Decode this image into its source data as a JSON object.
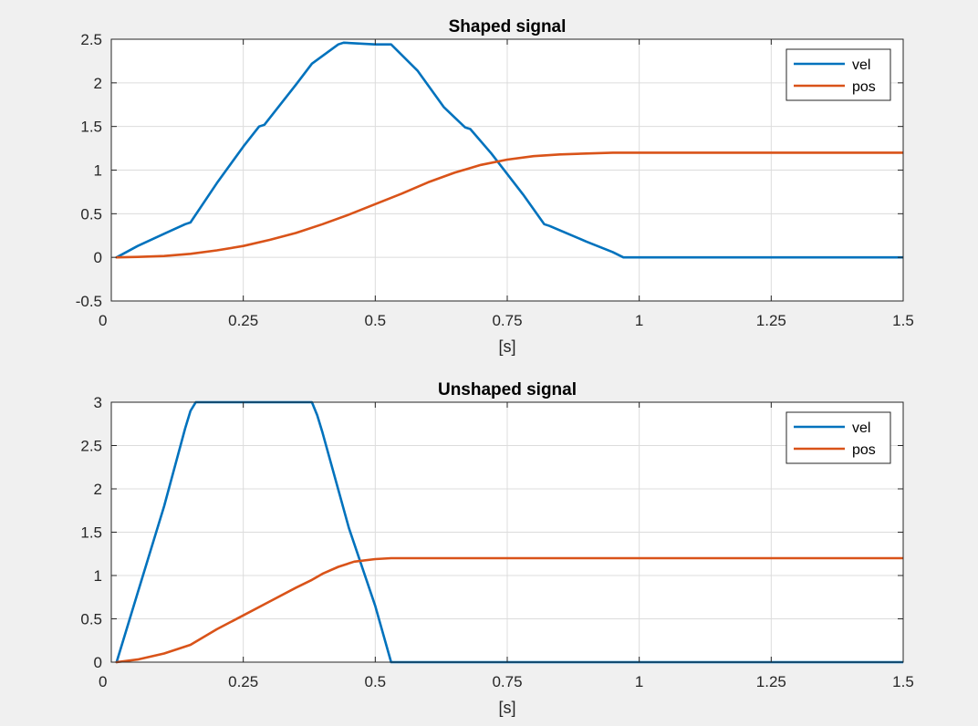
{
  "chart_data": [
    {
      "type": "line",
      "title": "Shaped signal",
      "xlabel": "[s]",
      "ylabel": "",
      "xlim": [
        0,
        1.5
      ],
      "ylim": [
        -0.5,
        2.5
      ],
      "xticks": [
        0,
        0.25,
        0.5,
        0.75,
        1,
        1.25,
        1.5
      ],
      "xtick_labels": [
        "0",
        "0.25",
        "0.5",
        "0.75",
        "1",
        "1.25",
        "1.5"
      ],
      "yticks": [
        -0.5,
        0,
        0.5,
        1,
        1.5,
        2,
        2.5
      ],
      "ytick_labels": [
        "-0.5",
        "0",
        "0.5",
        "1",
        "1.5",
        "2",
        "2.5"
      ],
      "grid": true,
      "legend": "top-right",
      "series": [
        {
          "name": "vel",
          "color": "#0072BD",
          "x": [
            0.01,
            0.05,
            0.1,
            0.14,
            0.15,
            0.2,
            0.25,
            0.28,
            0.29,
            0.35,
            0.38,
            0.43,
            0.44,
            0.5,
            0.53,
            0.58,
            0.63,
            0.67,
            0.68,
            0.72,
            0.78,
            0.82,
            0.83,
            0.9,
            0.95,
            0.97,
            1.0,
            1.25,
            1.5
          ],
          "y": [
            0.0,
            0.13,
            0.27,
            0.38,
            0.4,
            0.85,
            1.27,
            1.5,
            1.52,
            1.98,
            2.22,
            2.44,
            2.46,
            2.44,
            2.44,
            2.14,
            1.72,
            1.49,
            1.47,
            1.19,
            0.72,
            0.38,
            0.36,
            0.18,
            0.06,
            0.0,
            0.0,
            0.0,
            0.0
          ]
        },
        {
          "name": "pos",
          "color": "#D95319",
          "x": [
            0.01,
            0.05,
            0.1,
            0.15,
            0.2,
            0.25,
            0.3,
            0.35,
            0.4,
            0.45,
            0.5,
            0.55,
            0.6,
            0.65,
            0.7,
            0.75,
            0.8,
            0.85,
            0.9,
            0.95,
            1.0,
            1.25,
            1.5
          ],
          "y": [
            0.0,
            0.005,
            0.015,
            0.04,
            0.08,
            0.13,
            0.2,
            0.28,
            0.38,
            0.49,
            0.61,
            0.73,
            0.86,
            0.97,
            1.06,
            1.12,
            1.16,
            1.18,
            1.19,
            1.2,
            1.2,
            1.2,
            1.2
          ]
        }
      ]
    },
    {
      "type": "line",
      "title": "Unshaped signal",
      "xlabel": "[s]",
      "ylabel": "",
      "xlim": [
        0,
        1.5
      ],
      "ylim": [
        0,
        3
      ],
      "xticks": [
        0,
        0.25,
        0.5,
        0.75,
        1,
        1.25,
        1.5
      ],
      "xtick_labels": [
        "0",
        "0.25",
        "0.5",
        "0.75",
        "1",
        "1.25",
        "1.5"
      ],
      "yticks": [
        0,
        0.5,
        1,
        1.5,
        2,
        2.5,
        3
      ],
      "ytick_labels": [
        "0",
        "0.5",
        "1",
        "1.5",
        "2",
        "2.5",
        "3"
      ],
      "grid": true,
      "legend": "top-right",
      "series": [
        {
          "name": "vel",
          "color": "#0072BD",
          "x": [
            0.01,
            0.05,
            0.1,
            0.14,
            0.15,
            0.16,
            0.38,
            0.39,
            0.4,
            0.45,
            0.5,
            0.53,
            0.55,
            1.0,
            1.5
          ],
          "y": [
            0.0,
            0.8,
            1.8,
            2.7,
            2.9,
            3.0,
            3.0,
            2.85,
            2.65,
            1.55,
            0.65,
            0.0,
            0.0,
            0.0,
            0.0
          ]
        },
        {
          "name": "pos",
          "color": "#D95319",
          "x": [
            0.01,
            0.05,
            0.1,
            0.15,
            0.2,
            0.25,
            0.3,
            0.35,
            0.38,
            0.4,
            0.43,
            0.46,
            0.5,
            0.53,
            0.6,
            1.0,
            1.5
          ],
          "y": [
            0.0,
            0.03,
            0.1,
            0.2,
            0.38,
            0.54,
            0.7,
            0.86,
            0.95,
            1.02,
            1.1,
            1.16,
            1.19,
            1.2,
            1.2,
            1.2,
            1.2
          ]
        }
      ]
    }
  ]
}
